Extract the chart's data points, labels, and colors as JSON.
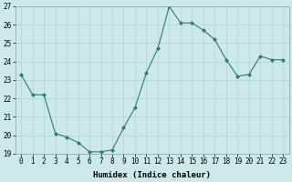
{
  "x": [
    0,
    1,
    2,
    3,
    4,
    5,
    6,
    7,
    8,
    9,
    10,
    11,
    12,
    13,
    14,
    15,
    16,
    17,
    18,
    19,
    20,
    21,
    22,
    23
  ],
  "y": [
    23.3,
    22.2,
    22.2,
    20.1,
    19.9,
    19.6,
    19.1,
    19.1,
    19.2,
    20.4,
    21.5,
    23.4,
    24.7,
    27.0,
    26.1,
    26.1,
    25.7,
    25.2,
    24.1,
    23.2,
    23.3,
    24.3,
    24.1,
    24.1
  ],
  "line_color": "#2d7d6e",
  "marker_color": "#2d7d6e",
  "bg_color": "#cce8e8",
  "grid_color": "#b0d8d8",
  "xlabel": "Humidex (Indice chaleur)",
  "ylim": [
    19,
    27
  ],
  "xlim": [
    -0.5,
    23.5
  ],
  "yticks": [
    19,
    20,
    21,
    22,
    23,
    24,
    25,
    26,
    27
  ],
  "xticks": [
    0,
    1,
    2,
    3,
    4,
    5,
    6,
    7,
    8,
    9,
    10,
    11,
    12,
    13,
    14,
    15,
    16,
    17,
    18,
    19,
    20,
    21,
    22,
    23
  ],
  "tick_fontsize": 5.5,
  "label_fontsize": 6.5
}
